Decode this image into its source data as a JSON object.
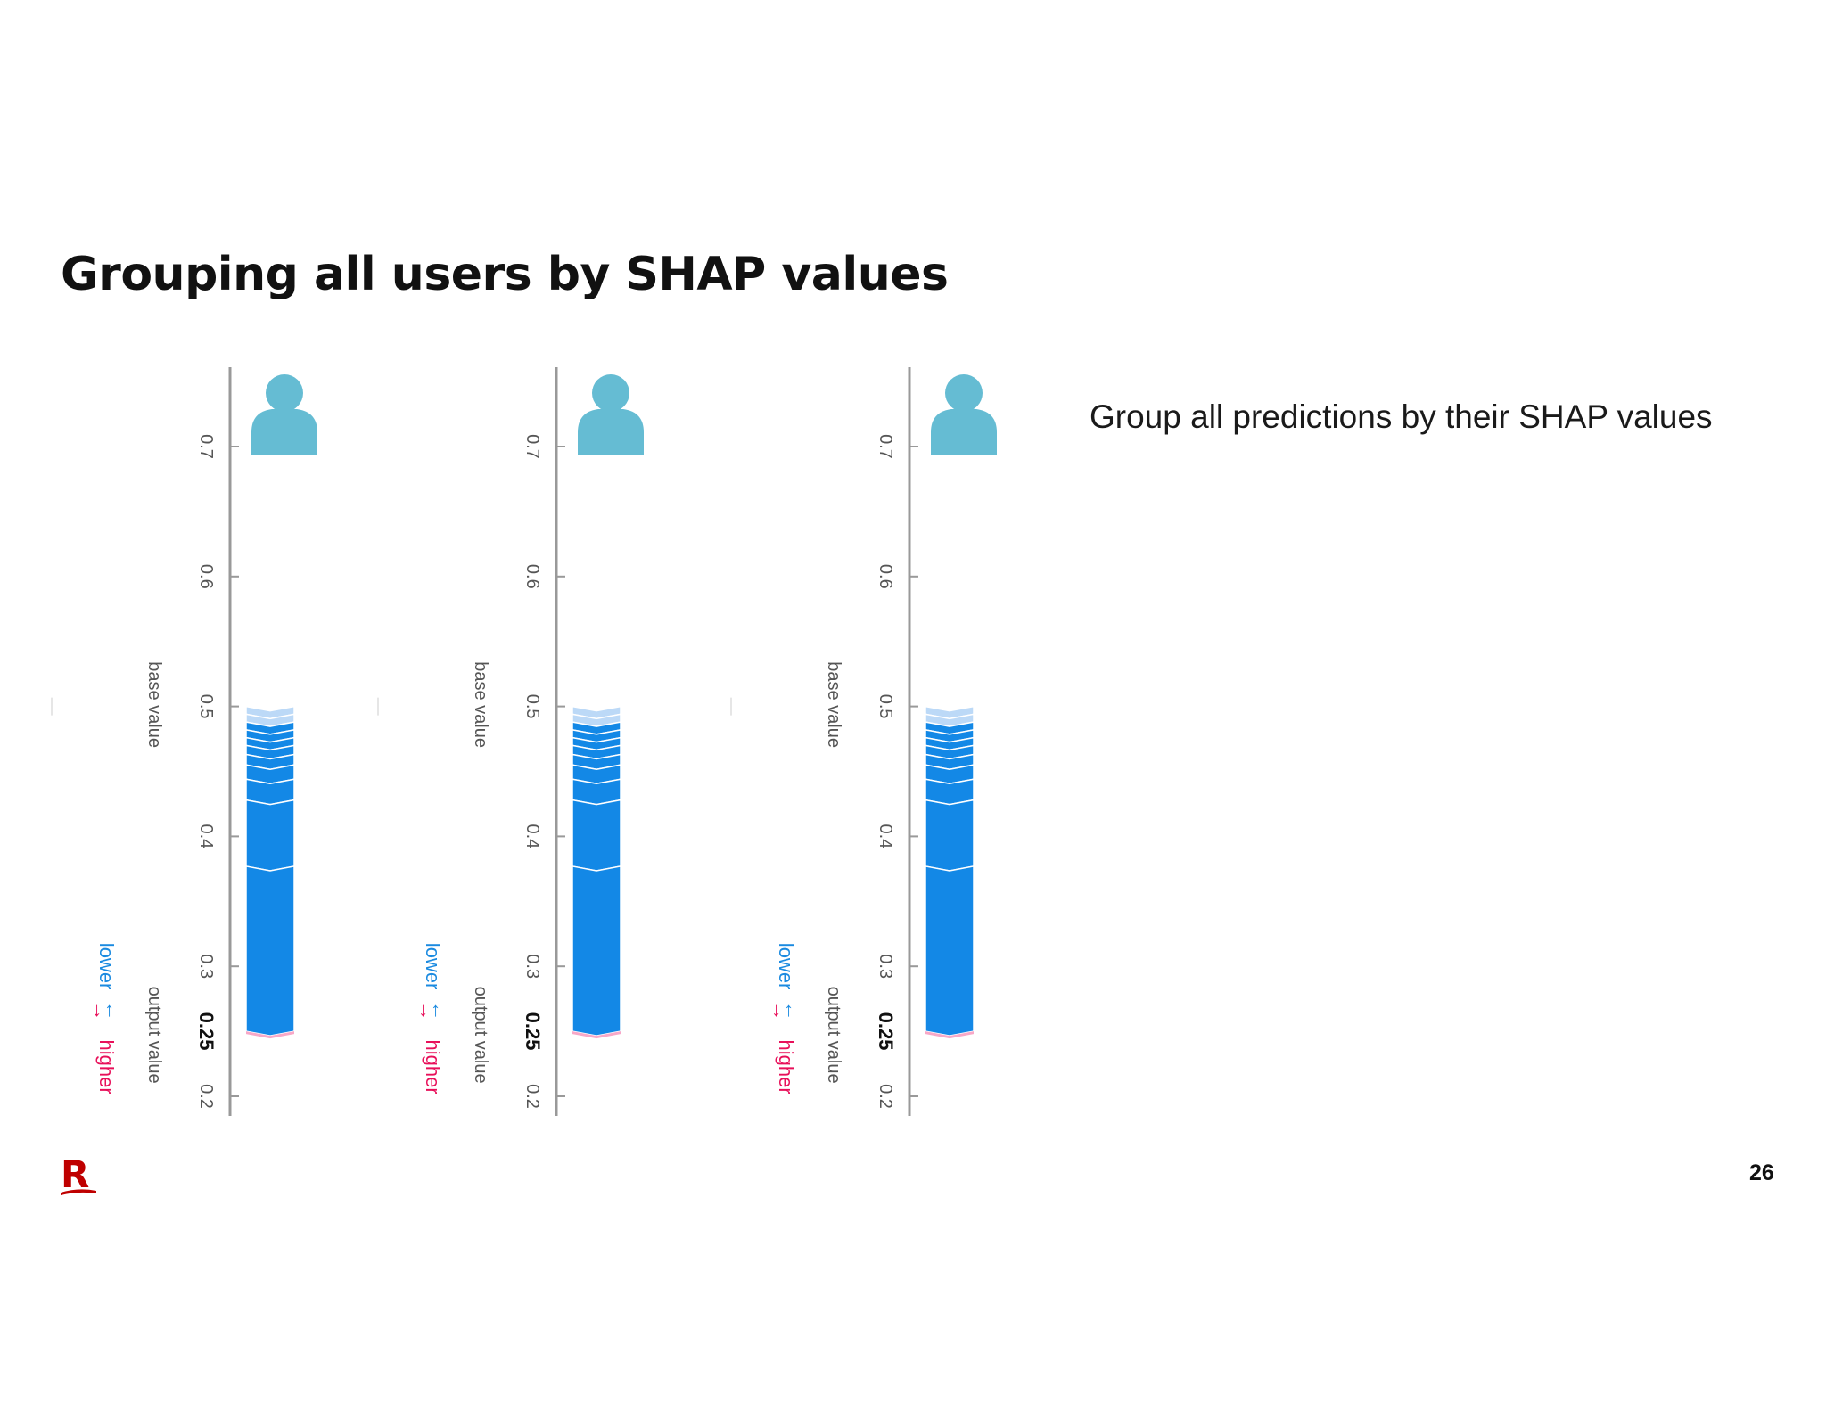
{
  "title": "Grouping all users by SHAP values",
  "description": "Group all predictions by their SHAP values",
  "page_number": "26",
  "logo_text": "R",
  "colors": {
    "bar": "#1388e6",
    "bar_light": "#bcd9f7",
    "higher": "#e8105a",
    "lower": "#1a8ae0",
    "avatar": "#65bcd3",
    "axis": "#999999"
  },
  "chart_data": [
    {
      "type": "bar",
      "axis_ticks": [
        0.2,
        0.3,
        0.4,
        0.5,
        0.6,
        0.7
      ],
      "ylim": [
        0.2,
        0.75
      ],
      "base_value": 0.5,
      "output_value": 0.25,
      "output_value_label": "0.25",
      "base_value_label": "base value",
      "output_label": "output value",
      "higher_label": "higher",
      "lower_label": "lower",
      "segment_boundaries": [
        0.5,
        0.494,
        0.488,
        0.482,
        0.476,
        0.47,
        0.463,
        0.455,
        0.444,
        0.428,
        0.377,
        0.25
      ]
    },
    {
      "type": "bar",
      "axis_ticks": [
        0.2,
        0.3,
        0.4,
        0.5,
        0.6,
        0.7
      ],
      "ylim": [
        0.2,
        0.75
      ],
      "base_value": 0.5,
      "output_value": 0.25,
      "output_value_label": "0.25",
      "base_value_label": "base value",
      "output_label": "output value",
      "higher_label": "higher",
      "lower_label": "lower",
      "segment_boundaries": [
        0.5,
        0.494,
        0.488,
        0.482,
        0.476,
        0.47,
        0.463,
        0.455,
        0.444,
        0.428,
        0.377,
        0.25
      ]
    },
    {
      "type": "bar",
      "axis_ticks": [
        0.2,
        0.3,
        0.4,
        0.5,
        0.6,
        0.7
      ],
      "ylim": [
        0.2,
        0.75
      ],
      "base_value": 0.5,
      "output_value": 0.25,
      "output_value_label": "0.25",
      "base_value_label": "base value",
      "output_label": "output value",
      "higher_label": "higher",
      "lower_label": "lower",
      "segment_boundaries": [
        0.5,
        0.494,
        0.488,
        0.482,
        0.476,
        0.47,
        0.463,
        0.455,
        0.444,
        0.428,
        0.377,
        0.25
      ]
    }
  ]
}
